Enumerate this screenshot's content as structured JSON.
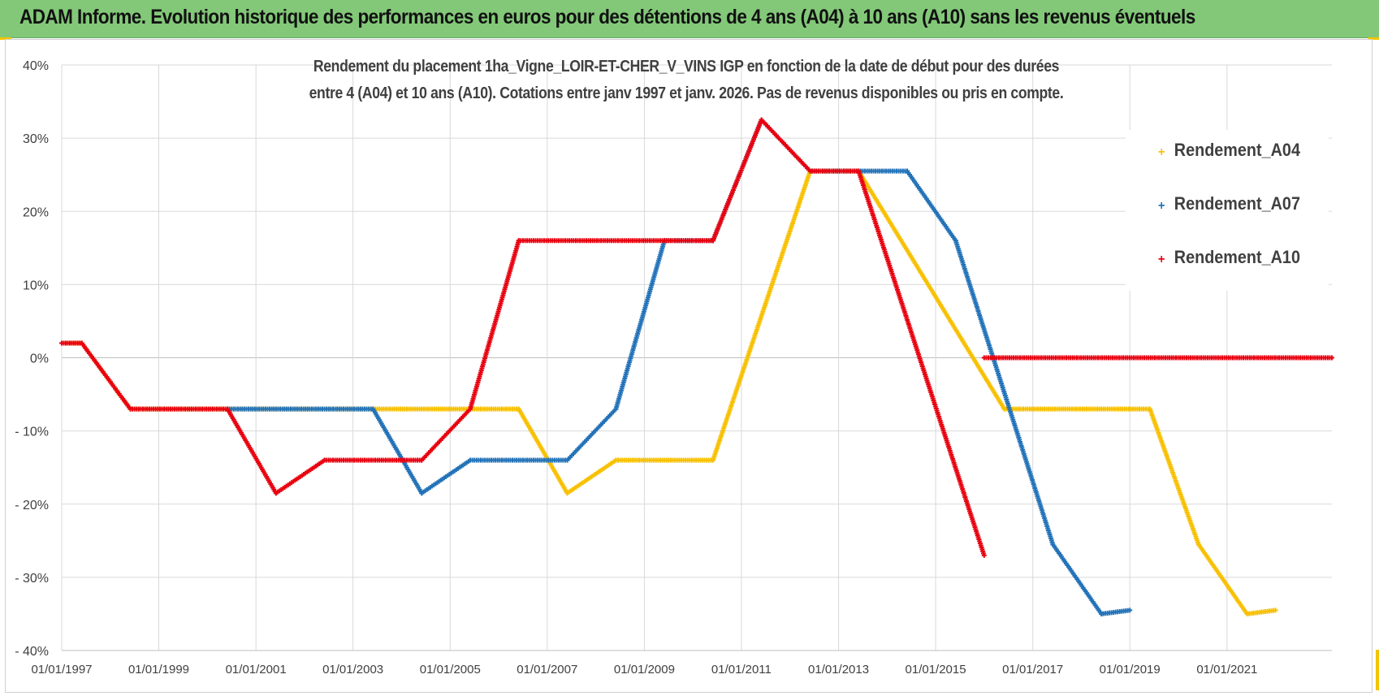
{
  "header": {
    "title": "ADAM Informe. Evolution historique des performances en euros pour des détentions de 4 ans (A04) à 10 ans (A10) sans les revenus éventuels"
  },
  "colors": {
    "banner": "#82c878",
    "corner_accent": "#f2c500",
    "A04": "#f7c000",
    "A07": "#2272b8",
    "A10": "#e8000f",
    "grid": "#d9d9d9",
    "text": "#404040"
  },
  "chart_data": {
    "type": "scatter",
    "title_line1": "Rendement du placement 1ha_Vigne_LOIR-ET-CHER_V_VINS IGP en fonction de la date de début pour des durées",
    "title_line2": "entre 4 (A04) et 10 ans (A10).  Cotations entre janv 1997 et janv. 2026. Pas de revenus disponibles ou pris en compte.",
    "xlabel": "",
    "ylabel": "",
    "x_range": [
      "1997-01-01",
      "2023-03-01"
    ],
    "ylim": [
      -40,
      40
    ],
    "y_ticks": [
      40,
      30,
      20,
      10,
      0,
      -10,
      -20,
      -30,
      -40
    ],
    "y_tick_labels": [
      "40%",
      "30%",
      "20%",
      "10%",
      "0%",
      "- 10%",
      "- 20%",
      "- 30%",
      "- 40%"
    ],
    "x_ticks": [
      "1997-01-01",
      "1999-01-01",
      "2001-01-01",
      "2003-01-01",
      "2005-01-01",
      "2007-01-01",
      "2009-01-01",
      "2011-01-01",
      "2013-01-01",
      "2015-01-01",
      "2017-01-01",
      "2019-01-01",
      "2021-01-01"
    ],
    "x_tick_labels": [
      "01/01/1997",
      "01/01/1999",
      "01/01/2001",
      "01/01/2003",
      "01/01/2005",
      "01/01/2007",
      "01/01/2009",
      "01/01/2011",
      "01/01/2013",
      "01/01/2015",
      "01/01/2017",
      "01/01/2019",
      "01/01/2021"
    ],
    "grid": "horizontal and vertical",
    "legend_position": "right",
    "marker": "+",
    "series": [
      {
        "name": "Rendement_A04",
        "color": "#f7c000",
        "points": [
          [
            "1997-01-01",
            2
          ],
          [
            "1997-06-01",
            2
          ],
          [
            "1998-06-01",
            -7
          ],
          [
            "2003-06-01",
            -7
          ],
          [
            "2006-06-01",
            -7
          ],
          [
            "2007-06-01",
            -18.5
          ],
          [
            "2008-06-01",
            -14
          ],
          [
            "2010-06-01",
            -14
          ],
          [
            "2012-06-01",
            25.5
          ],
          [
            "2013-06-01",
            25.5
          ],
          [
            "2016-06-01",
            -7
          ],
          [
            "2019-06-01",
            -7
          ],
          [
            "2020-06-01",
            -25.5
          ],
          [
            "2021-06-01",
            -35
          ],
          [
            "2022-01-01",
            -34.5
          ]
        ]
      },
      {
        "name": "Rendement_A07",
        "color": "#2272b8",
        "points": [
          [
            "2000-06-01",
            -7
          ],
          [
            "2003-06-01",
            -7
          ],
          [
            "2004-06-01",
            -18.5
          ],
          [
            "2005-06-01",
            -14
          ],
          [
            "2007-06-01",
            -14
          ],
          [
            "2008-06-01",
            -7
          ],
          [
            "2009-06-01",
            16
          ],
          [
            "2010-06-01",
            16
          ],
          [
            "2011-06-01",
            32.5
          ],
          [
            "2012-06-01",
            25.5
          ],
          [
            "2014-06-01",
            25.5
          ],
          [
            "2015-06-01",
            16
          ],
          [
            "2017-06-01",
            -25.5
          ],
          [
            "2018-06-01",
            -35
          ],
          [
            "2019-01-01",
            -34.5
          ]
        ]
      },
      {
        "name": "Rendement_A10",
        "color": "#e8000f",
        "points": [
          [
            "1997-01-01",
            2
          ],
          [
            "1997-06-01",
            2
          ],
          [
            "1998-06-01",
            -7
          ],
          [
            "2000-06-01",
            -7
          ],
          [
            "2001-06-01",
            -18.5
          ],
          [
            "2002-06-01",
            -14
          ],
          [
            "2004-06-01",
            -14
          ],
          [
            "2005-06-01",
            -7
          ],
          [
            "2006-06-01",
            16
          ],
          [
            "2010-06-01",
            16
          ],
          [
            "2011-06-01",
            32.5
          ],
          [
            "2012-06-01",
            25.5
          ],
          [
            "2013-06-01",
            25.5
          ],
          [
            "2016-01-01",
            -27
          ]
        ],
        "points_b": [
          [
            "2016-01-01",
            0
          ],
          [
            "2023-03-01",
            0
          ]
        ]
      }
    ]
  }
}
